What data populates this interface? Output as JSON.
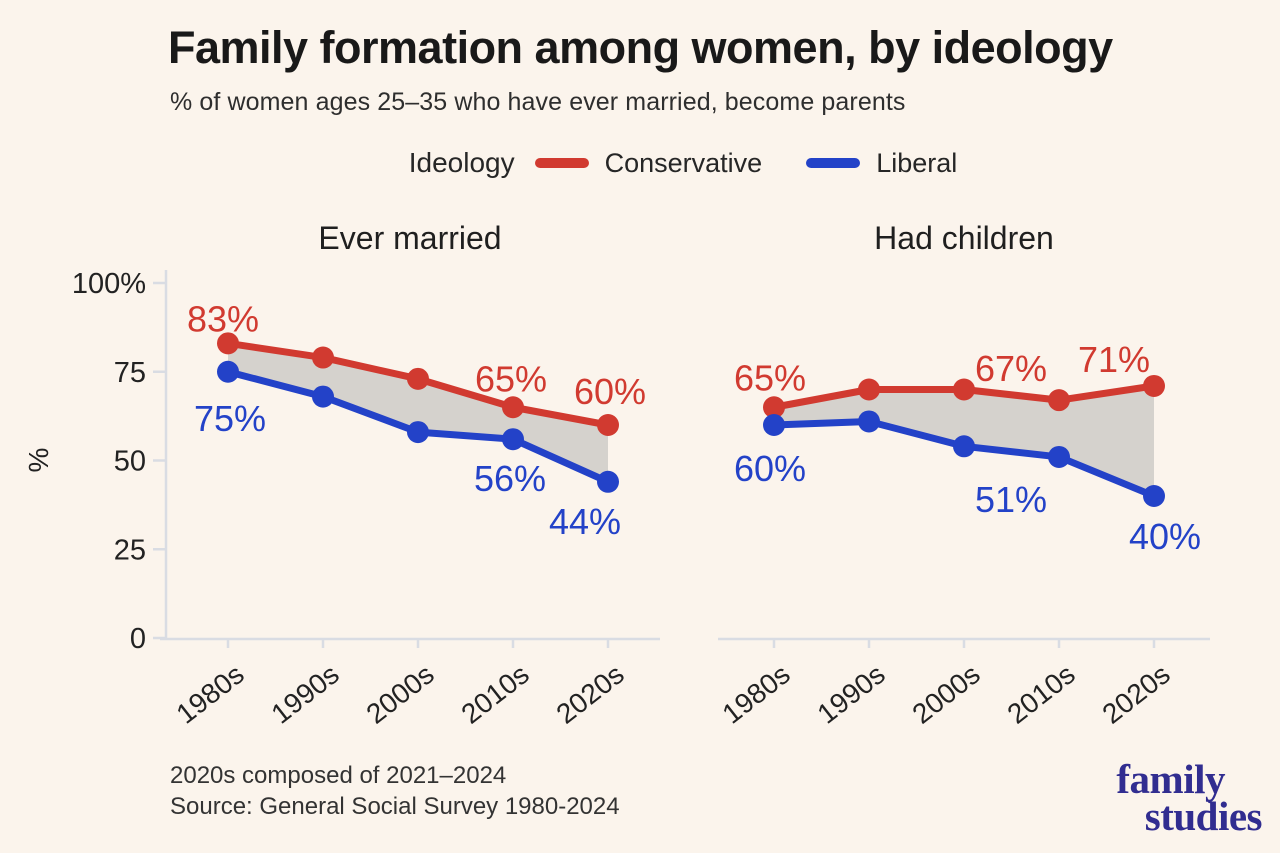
{
  "page": {
    "background": "#fbf4ec"
  },
  "header": {
    "title": "Family formation among women, by ideology",
    "subtitle": "% of women ages 25–35 who have ever married, become parents"
  },
  "legend": {
    "label": "Ideology",
    "items": [
      {
        "name": "Conservative",
        "color": "#d13a30"
      },
      {
        "name": "Liberal",
        "color": "#2342c8"
      }
    ]
  },
  "footnotes": {
    "note": "2020s composed of 2021–2024",
    "source": "Source: General Social Survey 1980-2024"
  },
  "logo": {
    "line1": "family",
    "line2": "studies",
    "color": "#312d90"
  },
  "chart_data": {
    "type": "line",
    "categories": [
      "1980s",
      "1990s",
      "2000s",
      "2010s",
      "2020s"
    ],
    "ylabel": "%",
    "ylim": [
      0,
      100
    ],
    "grid": false,
    "legend_position": "top",
    "band_color": "#d5d2cd",
    "axis_color": "#d9dce3",
    "yticks": [
      {
        "value": 100,
        "label": "100%"
      },
      {
        "value": 75,
        "label": "75"
      },
      {
        "value": 50,
        "label": "50"
      },
      {
        "value": 25,
        "label": "25"
      },
      {
        "value": 0,
        "label": "0"
      }
    ],
    "panels": [
      {
        "title": "Ever married",
        "series": [
          {
            "name": "Conservative",
            "color": "#d13a30",
            "values": [
              83,
              79,
              73,
              65,
              60
            ]
          },
          {
            "name": "Liberal",
            "color": "#2342c8",
            "values": [
              75,
              68,
              58,
              56,
              44
            ]
          }
        ],
        "labels": [
          {
            "series": 0,
            "point": 0,
            "text": "83%"
          },
          {
            "series": 1,
            "point": 0,
            "text": "75%"
          },
          {
            "series": 0,
            "point": 3,
            "text": "65%"
          },
          {
            "series": 0,
            "point": 4,
            "text": "60%"
          },
          {
            "series": 1,
            "point": 3,
            "text": "56%"
          },
          {
            "series": 1,
            "point": 4,
            "text": "44%"
          }
        ]
      },
      {
        "title": "Had children",
        "series": [
          {
            "name": "Conservative",
            "color": "#d13a30",
            "values": [
              65,
              70,
              70,
              67,
              71
            ]
          },
          {
            "name": "Liberal",
            "color": "#2342c8",
            "values": [
              60,
              61,
              54,
              51,
              40
            ]
          }
        ],
        "labels": [
          {
            "series": 0,
            "point": 0,
            "text": "65%"
          },
          {
            "series": 1,
            "point": 0,
            "text": "60%"
          },
          {
            "series": 0,
            "point": 3,
            "text": "67%"
          },
          {
            "series": 0,
            "point": 4,
            "text": "71%"
          },
          {
            "series": 1,
            "point": 3,
            "text": "51%"
          },
          {
            "series": 1,
            "point": 4,
            "text": "40%"
          }
        ]
      }
    ]
  }
}
